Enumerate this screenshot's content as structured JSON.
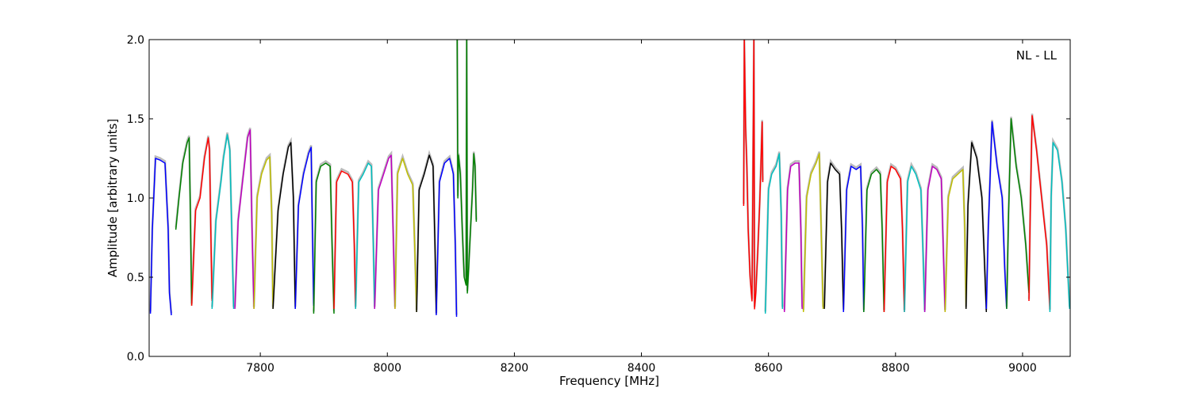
{
  "chart_data": {
    "type": "line",
    "title": "",
    "xlabel": "Frequency [MHz]",
    "ylabel": "Amplitude [arbitrary units]",
    "xlim": [
      7625,
      9075
    ],
    "ylim": [
      0.0,
      2.0
    ],
    "xticks": [
      7800,
      8000,
      8200,
      8400,
      8600,
      8800,
      9000
    ],
    "yticks": [
      0.0,
      0.5,
      1.0,
      1.5,
      2.0
    ],
    "xtick_labels": [
      "7800",
      "8000",
      "8200",
      "8400",
      "8600",
      "8800",
      "9000"
    ],
    "ytick_labels": [
      "0.0",
      "0.5",
      "1.0",
      "1.5",
      "2.0"
    ],
    "grid": false,
    "annotation": "NL - LL",
    "reference_color": "#bbbbbb",
    "colors": [
      "#0000ff",
      "#008000",
      "#ff0000",
      "#00bfbf",
      "#bf00bf",
      "#bfbf00",
      "#000000"
    ],
    "series": [
      {
        "color": "#0000ff",
        "x": [
          7627,
          7630,
          7635,
          7642,
          7650,
          7655,
          7657,
          7660
        ],
        "y": [
          0.27,
          0.8,
          1.25,
          1.24,
          1.22,
          0.8,
          0.4,
          0.26
        ]
      },
      {
        "color": "#008000",
        "x": [
          7667,
          7672,
          7678,
          7685,
          7688,
          7690,
          7692
        ],
        "y": [
          0.8,
          1.0,
          1.22,
          1.35,
          1.38,
          0.9,
          0.32
        ]
      },
      {
        "color": "#ff0000",
        "x": [
          7692,
          7698,
          7705,
          7712,
          7718,
          7720,
          7722,
          7724
        ],
        "y": [
          0.32,
          0.92,
          1.0,
          1.25,
          1.38,
          1.3,
          0.8,
          0.35
        ]
      },
      {
        "color": "#00bfbf",
        "x": [
          7724,
          7730,
          7738,
          7742,
          7748,
          7752,
          7755,
          7758
        ],
        "y": [
          0.3,
          0.85,
          1.1,
          1.25,
          1.4,
          1.3,
          0.8,
          0.3
        ]
      },
      {
        "color": "#bf00bf",
        "x": [
          7760,
          7765,
          7772,
          7780,
          7784,
          7787,
          7790
        ],
        "y": [
          0.3,
          0.85,
          1.1,
          1.38,
          1.43,
          0.8,
          0.3
        ]
      },
      {
        "color": "#bfbf00",
        "x": [
          7790,
          7795,
          7802,
          7810,
          7815,
          7818,
          7820
        ],
        "y": [
          0.3,
          1.0,
          1.15,
          1.24,
          1.26,
          0.9,
          0.3
        ]
      },
      {
        "color": "#000000",
        "x": [
          7820,
          7828,
          7836,
          7844,
          7848,
          7852,
          7855
        ],
        "y": [
          0.3,
          0.92,
          1.15,
          1.32,
          1.35,
          1.0,
          0.3
        ]
      },
      {
        "color": "#0000ff",
        "x": [
          7855,
          7860,
          7868,
          7876,
          7880,
          7882,
          7884
        ],
        "y": [
          0.3,
          0.95,
          1.15,
          1.28,
          1.32,
          0.8,
          0.32
        ]
      },
      {
        "color": "#008000",
        "x": [
          7884,
          7888,
          7895,
          7903,
          7910,
          7913,
          7916
        ],
        "y": [
          0.27,
          1.1,
          1.2,
          1.22,
          1.2,
          0.7,
          0.27
        ]
      },
      {
        "color": "#ff0000",
        "x": [
          7916,
          7920,
          7928,
          7938,
          7945,
          7948,
          7950
        ],
        "y": [
          0.3,
          1.1,
          1.17,
          1.15,
          1.1,
          0.7,
          0.3
        ]
      },
      {
        "color": "#00bfbf",
        "x": [
          7950,
          7955,
          7962,
          7970,
          7975,
          7978,
          7980
        ],
        "y": [
          0.3,
          1.1,
          1.15,
          1.22,
          1.2,
          0.7,
          0.3
        ]
      },
      {
        "color": "#bf00bf",
        "x": [
          7980,
          7986,
          7994,
          8002,
          8006,
          8009,
          8012
        ],
        "y": [
          0.3,
          1.05,
          1.15,
          1.25,
          1.27,
          0.8,
          0.3
        ]
      },
      {
        "color": "#bfbf00",
        "x": [
          8012,
          8016,
          8024,
          8032,
          8040,
          8043,
          8046
        ],
        "y": [
          0.3,
          1.15,
          1.25,
          1.15,
          1.08,
          0.7,
          0.28
        ]
      },
      {
        "color": "#000000",
        "x": [
          8046,
          8050,
          8058,
          8066,
          8072,
          8075,
          8077
        ],
        "y": [
          0.28,
          1.05,
          1.15,
          1.27,
          1.2,
          0.7,
          0.27
        ]
      },
      {
        "color": "#0000ff",
        "x": [
          8077,
          8082,
          8090,
          8098,
          8104,
          8107,
          8109
        ],
        "y": [
          0.26,
          1.1,
          1.22,
          1.25,
          1.15,
          0.7,
          0.25
        ]
      },
      {
        "color": "#008000",
        "x": [
          8110,
          8111,
          8112,
          8115,
          8118,
          8121,
          8124,
          8125,
          8126,
          8128,
          8131,
          8134,
          8136,
          8138,
          8140
        ],
        "y": [
          2.0,
          1.0,
          1.27,
          1.15,
          0.8,
          0.5,
          0.45,
          2.0,
          0.4,
          0.55,
          0.8,
          1.05,
          1.28,
          1.2,
          0.85
        ]
      },
      {
        "color": "#ff0000",
        "x": [
          8561,
          8562,
          8564,
          8566,
          8568,
          8571,
          8574,
          8577,
          8578,
          8580,
          8583,
          8586,
          8588,
          8590,
          8591
        ],
        "y": [
          0.95,
          2.0,
          1.45,
          1.2,
          0.8,
          0.5,
          0.35,
          2.0,
          0.3,
          0.4,
          0.65,
          0.95,
          1.2,
          1.48,
          1.1
        ]
      },
      {
        "color": "#00bfbf",
        "x": [
          8595,
          8600,
          8605,
          8612,
          8617,
          8620,
          8622
        ],
        "y": [
          0.27,
          1.05,
          1.15,
          1.2,
          1.28,
          0.9,
          0.3
        ]
      },
      {
        "color": "#bf00bf",
        "x": [
          8625,
          8630,
          8635,
          8642,
          8648,
          8651,
          8653
        ],
        "y": [
          0.28,
          1.05,
          1.2,
          1.22,
          1.22,
          0.8,
          0.3
        ]
      },
      {
        "color": "#bfbf00",
        "x": [
          8655,
          8660,
          8667,
          8675,
          8680,
          8683,
          8686
        ],
        "y": [
          0.28,
          1.0,
          1.15,
          1.22,
          1.28,
          0.8,
          0.3
        ]
      },
      {
        "color": "#000000",
        "x": [
          8688,
          8693,
          8698,
          8705,
          8712,
          8715,
          8718
        ],
        "y": [
          0.3,
          1.1,
          1.22,
          1.18,
          1.15,
          0.8,
          0.3
        ]
      },
      {
        "color": "#0000ff",
        "x": [
          8718,
          8723,
          8730,
          8738,
          8745,
          8748,
          8750
        ],
        "y": [
          0.28,
          1.05,
          1.2,
          1.18,
          1.2,
          0.8,
          0.28
        ]
      },
      {
        "color": "#008000",
        "x": [
          8750,
          8755,
          8762,
          8770,
          8776,
          8779,
          8782
        ],
        "y": [
          0.28,
          1.05,
          1.15,
          1.18,
          1.15,
          0.8,
          0.28
        ]
      },
      {
        "color": "#ff0000",
        "x": [
          8782,
          8787,
          8793,
          8800,
          8808,
          8811,
          8814
        ],
        "y": [
          0.28,
          1.1,
          1.2,
          1.18,
          1.12,
          0.8,
          0.28
        ]
      },
      {
        "color": "#00bfbf",
        "x": [
          8814,
          8819,
          8825,
          8832,
          8840,
          8843,
          8846
        ],
        "y": [
          0.28,
          1.1,
          1.2,
          1.15,
          1.05,
          0.7,
          0.28
        ]
      },
      {
        "color": "#bf00bf",
        "x": [
          8846,
          8851,
          8858,
          8865,
          8872,
          8875,
          8878
        ],
        "y": [
          0.28,
          1.05,
          1.2,
          1.18,
          1.12,
          0.7,
          0.28
        ]
      },
      {
        "color": "#bfbf00",
        "x": [
          8878,
          8883,
          8890,
          8898,
          8906,
          8909,
          8911
        ],
        "y": [
          0.28,
          1.0,
          1.12,
          1.15,
          1.18,
          0.8,
          0.3
        ]
      },
      {
        "color": "#000000",
        "x": [
          8911,
          8914,
          8920,
          8928,
          8936,
          8940,
          8943
        ],
        "y": [
          0.3,
          0.95,
          1.35,
          1.25,
          1.0,
          0.6,
          0.28
        ]
      },
      {
        "color": "#0000ff",
        "x": [
          8943,
          8946,
          8952,
          8960,
          8968,
          8972,
          8975
        ],
        "y": [
          0.3,
          0.8,
          1.48,
          1.2,
          1.0,
          0.55,
          0.3
        ]
      },
      {
        "color": "#008000",
        "x": [
          8975,
          8978,
          8982,
          8990,
          8998,
          9005,
          9010
        ],
        "y": [
          0.3,
          0.9,
          1.5,
          1.2,
          1.0,
          0.7,
          0.4
        ]
      },
      {
        "color": "#ff0000",
        "x": [
          9010,
          9012,
          9015,
          9022,
          9030,
          9038,
          9043
        ],
        "y": [
          0.35,
          0.9,
          1.52,
          1.3,
          1.0,
          0.7,
          0.3
        ]
      },
      {
        "color": "#00bfbf",
        "x": [
          9043,
          9045,
          9048,
          9055,
          9062,
          9068,
          9074
        ],
        "y": [
          0.28,
          1.0,
          1.35,
          1.3,
          1.1,
          0.8,
          0.3
        ]
      }
    ]
  }
}
